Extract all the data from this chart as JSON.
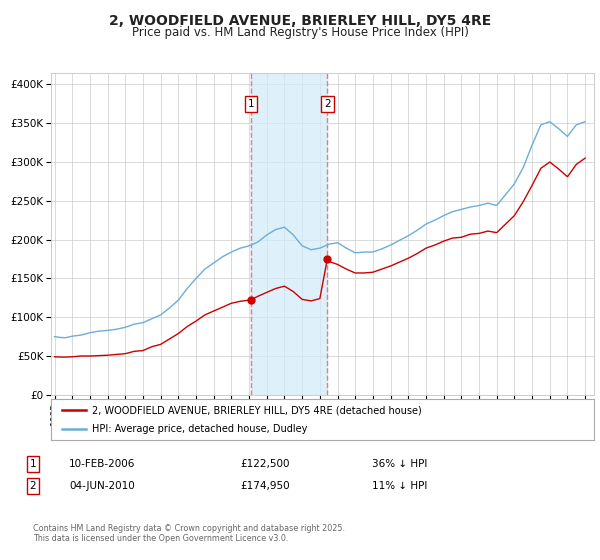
{
  "title": "2, WOODFIELD AVENUE, BRIERLEY HILL, DY5 4RE",
  "subtitle": "Price paid vs. HM Land Registry's House Price Index (HPI)",
  "title_fontsize": 10,
  "subtitle_fontsize": 8.5,
  "bg_color": "#ffffff",
  "plot_bg_color": "#ffffff",
  "grid_color": "#cccccc",
  "ylabel_ticks": [
    "£0",
    "£50K",
    "£100K",
    "£150K",
    "£200K",
    "£250K",
    "£300K",
    "£350K",
    "£400K"
  ],
  "ytick_values": [
    0,
    50000,
    100000,
    150000,
    200000,
    250000,
    300000,
    350000,
    400000
  ],
  "ylim": [
    0,
    415000
  ],
  "xlim_start": 1994.8,
  "xlim_end": 2025.5,
  "hpi_color": "#6baed6",
  "price_color": "#cc0000",
  "sale1_date": 2006.11,
  "sale1_price": 122500,
  "sale2_date": 2010.42,
  "sale2_price": 174950,
  "vspan_color": "#d0eaf8",
  "vspan_alpha": 0.7,
  "vline_color": "#e08080",
  "vline_style": "--",
  "legend1_label": "2, WOODFIELD AVENUE, BRIERLEY HILL, DY5 4RE (detached house)",
  "legend2_label": "HPI: Average price, detached house, Dudley",
  "table_row1": [
    "1",
    "10-FEB-2006",
    "£122,500",
    "36% ↓ HPI"
  ],
  "table_row2": [
    "2",
    "04-JUN-2010",
    "£174,950",
    "11% ↓ HPI"
  ],
  "footer_text": "Contains HM Land Registry data © Crown copyright and database right 2025.\nThis data is licensed under the Open Government Licence v3.0.",
  "xtick_years": [
    1995,
    1996,
    1997,
    1998,
    1999,
    2000,
    2001,
    2002,
    2003,
    2004,
    2005,
    2006,
    2007,
    2008,
    2009,
    2010,
    2011,
    2012,
    2013,
    2014,
    2015,
    2016,
    2017,
    2018,
    2019,
    2020,
    2021,
    2022,
    2023,
    2024,
    2025
  ],
  "hpi_data": [
    [
      1995.0,
      75000
    ],
    [
      1995.3,
      74000
    ],
    [
      1995.6,
      73500
    ],
    [
      1996.0,
      75500
    ],
    [
      1996.5,
      77000
    ],
    [
      1997.0,
      80000
    ],
    [
      1997.5,
      82000
    ],
    [
      1998.0,
      83000
    ],
    [
      1998.5,
      84500
    ],
    [
      1999.0,
      87000
    ],
    [
      1999.5,
      91000
    ],
    [
      2000.0,
      93000
    ],
    [
      2000.5,
      98000
    ],
    [
      2001.0,
      103000
    ],
    [
      2001.5,
      112000
    ],
    [
      2002.0,
      122000
    ],
    [
      2002.5,
      137000
    ],
    [
      2003.0,
      150000
    ],
    [
      2003.5,
      162000
    ],
    [
      2004.0,
      170000
    ],
    [
      2004.5,
      178000
    ],
    [
      2005.0,
      184000
    ],
    [
      2005.5,
      189000
    ],
    [
      2006.0,
      192000
    ],
    [
      2006.5,
      197000
    ],
    [
      2007.0,
      206000
    ],
    [
      2007.5,
      213000
    ],
    [
      2008.0,
      216000
    ],
    [
      2008.5,
      206000
    ],
    [
      2009.0,
      192000
    ],
    [
      2009.5,
      187000
    ],
    [
      2010.0,
      189000
    ],
    [
      2010.5,
      194000
    ],
    [
      2011.0,
      196000
    ],
    [
      2011.5,
      189000
    ],
    [
      2012.0,
      183000
    ],
    [
      2012.5,
      184000
    ],
    [
      2013.0,
      184000
    ],
    [
      2013.5,
      188000
    ],
    [
      2014.0,
      193000
    ],
    [
      2014.5,
      199000
    ],
    [
      2015.0,
      205000
    ],
    [
      2015.5,
      212000
    ],
    [
      2016.0,
      220000
    ],
    [
      2016.5,
      225000
    ],
    [
      2017.0,
      231000
    ],
    [
      2017.5,
      236000
    ],
    [
      2018.0,
      239000
    ],
    [
      2018.5,
      242000
    ],
    [
      2019.0,
      244000
    ],
    [
      2019.5,
      247000
    ],
    [
      2020.0,
      244000
    ],
    [
      2020.5,
      258000
    ],
    [
      2021.0,
      272000
    ],
    [
      2021.5,
      293000
    ],
    [
      2022.0,
      322000
    ],
    [
      2022.5,
      348000
    ],
    [
      2023.0,
      352000
    ],
    [
      2023.5,
      343000
    ],
    [
      2024.0,
      333000
    ],
    [
      2024.5,
      348000
    ],
    [
      2025.0,
      352000
    ]
  ],
  "price_data": [
    [
      1995.0,
      49000
    ],
    [
      1995.5,
      48500
    ],
    [
      1996.0,
      49000
    ],
    [
      1996.5,
      50000
    ],
    [
      1997.0,
      50000
    ],
    [
      1997.5,
      50500
    ],
    [
      1998.0,
      51000
    ],
    [
      1998.5,
      52000
    ],
    [
      1999.0,
      53000
    ],
    [
      1999.5,
      56000
    ],
    [
      2000.0,
      57000
    ],
    [
      2000.5,
      62000
    ],
    [
      2001.0,
      65000
    ],
    [
      2001.5,
      72000
    ],
    [
      2002.0,
      79000
    ],
    [
      2002.5,
      88000
    ],
    [
      2003.0,
      95000
    ],
    [
      2003.5,
      103000
    ],
    [
      2004.0,
      108000
    ],
    [
      2004.5,
      113000
    ],
    [
      2005.0,
      118000
    ],
    [
      2005.5,
      120500
    ],
    [
      2006.0,
      122000
    ],
    [
      2006.11,
      122500
    ],
    [
      2006.5,
      127000
    ],
    [
      2007.0,
      132000
    ],
    [
      2007.5,
      137000
    ],
    [
      2008.0,
      140000
    ],
    [
      2008.5,
      133000
    ],
    [
      2009.0,
      123000
    ],
    [
      2009.5,
      121000
    ],
    [
      2010.0,
      124000
    ],
    [
      2010.42,
      174950
    ],
    [
      2010.5,
      172000
    ],
    [
      2011.0,
      168000
    ],
    [
      2011.5,
      162000
    ],
    [
      2012.0,
      157000
    ],
    [
      2012.5,
      157000
    ],
    [
      2013.0,
      158000
    ],
    [
      2013.5,
      162000
    ],
    [
      2014.0,
      166000
    ],
    [
      2014.5,
      171000
    ],
    [
      2015.0,
      176000
    ],
    [
      2015.5,
      182000
    ],
    [
      2016.0,
      189000
    ],
    [
      2016.5,
      193000
    ],
    [
      2017.0,
      198000
    ],
    [
      2017.5,
      202000
    ],
    [
      2018.0,
      203000
    ],
    [
      2018.5,
      207000
    ],
    [
      2019.0,
      208000
    ],
    [
      2019.5,
      211000
    ],
    [
      2020.0,
      209000
    ],
    [
      2020.5,
      220000
    ],
    [
      2021.0,
      231000
    ],
    [
      2021.5,
      249000
    ],
    [
      2022.0,
      270000
    ],
    [
      2022.5,
      292000
    ],
    [
      2023.0,
      300000
    ],
    [
      2023.5,
      291000
    ],
    [
      2024.0,
      281000
    ],
    [
      2024.5,
      297000
    ],
    [
      2025.0,
      305000
    ]
  ]
}
